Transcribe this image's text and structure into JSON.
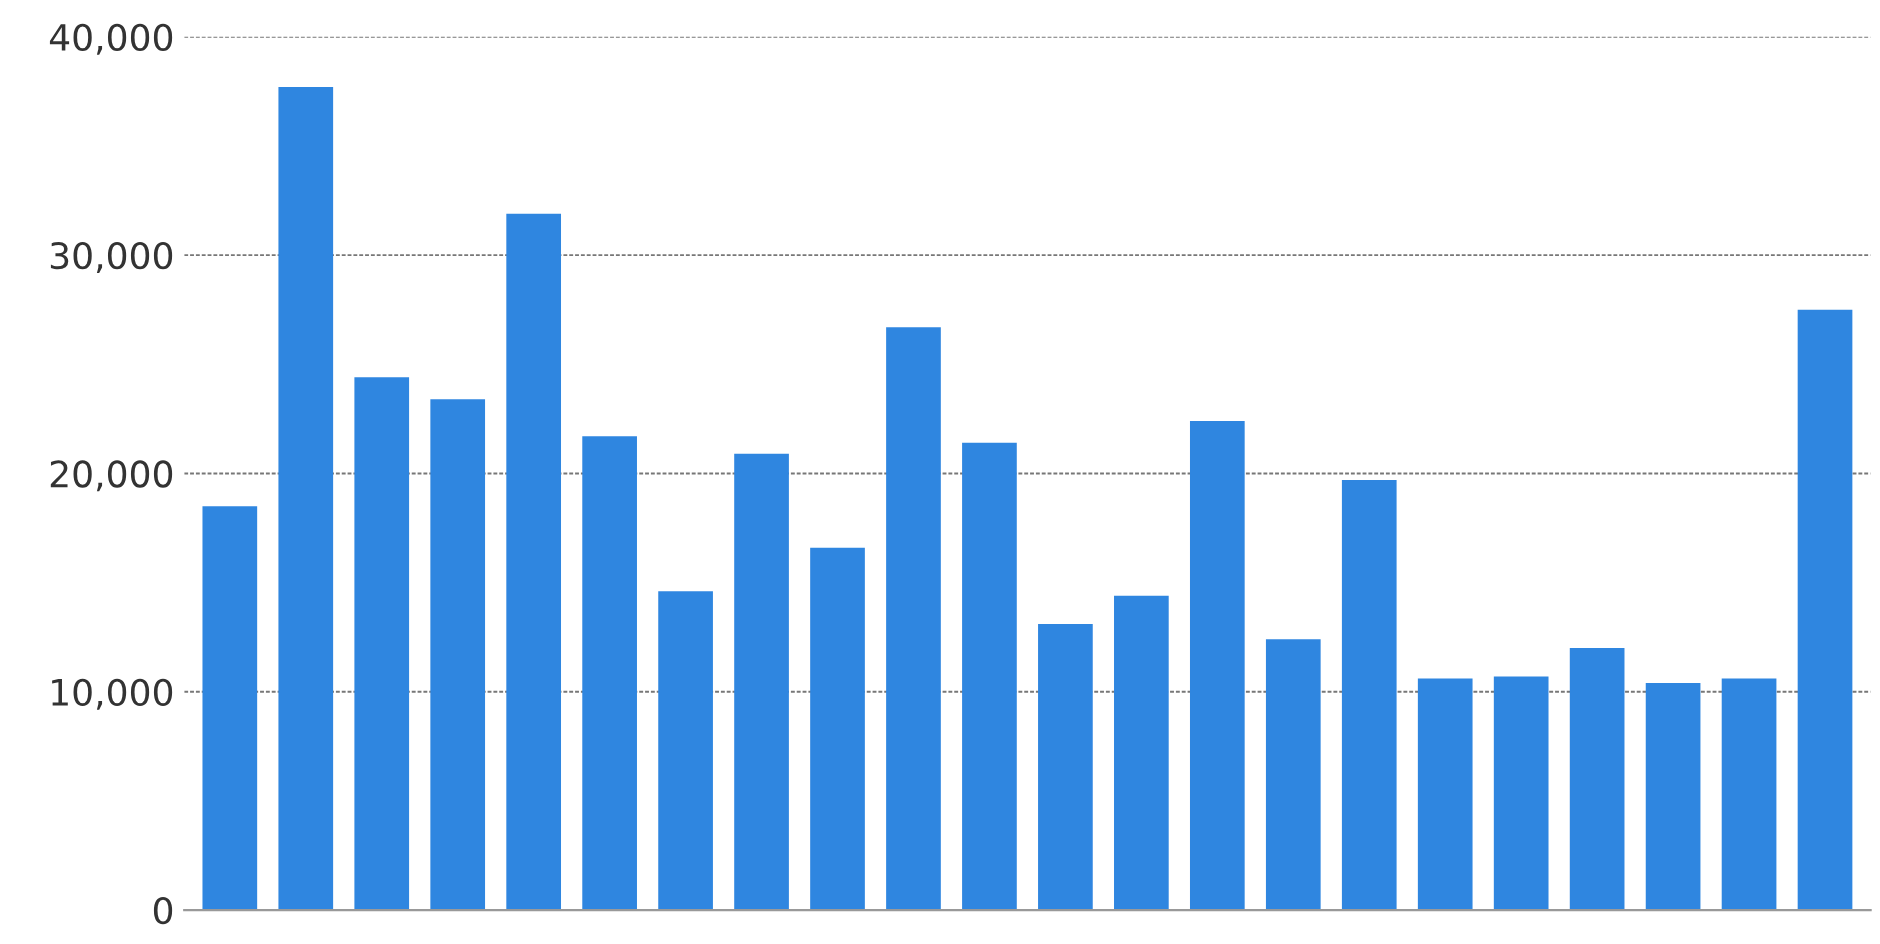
{
  "chart_data": {
    "type": "bar",
    "categories": [
      null,
      null,
      null,
      null,
      null,
      null,
      null,
      null,
      null,
      null,
      null,
      null,
      null,
      null,
      null,
      null,
      null,
      null,
      null,
      null,
      null,
      null
    ],
    "values": [
      18500,
      37700,
      24400,
      23400,
      31900,
      21700,
      14600,
      20900,
      16600,
      26700,
      21400,
      13100,
      14400,
      22400,
      12400,
      19700,
      10600,
      10700,
      12000,
      10400,
      10600,
      27500
    ],
    "color": "#2f86e0",
    "ylim": [
      0,
      40000
    ],
    "yticks": [
      {
        "value": 0,
        "label": "0"
      },
      {
        "value": 10000,
        "label": "10,000"
      },
      {
        "value": 20000,
        "label": "20,000"
      },
      {
        "value": 30000,
        "label": "30,000"
      },
      {
        "value": 40000,
        "label": "40,000"
      }
    ],
    "grid": "y",
    "tick_labels": "y"
  }
}
